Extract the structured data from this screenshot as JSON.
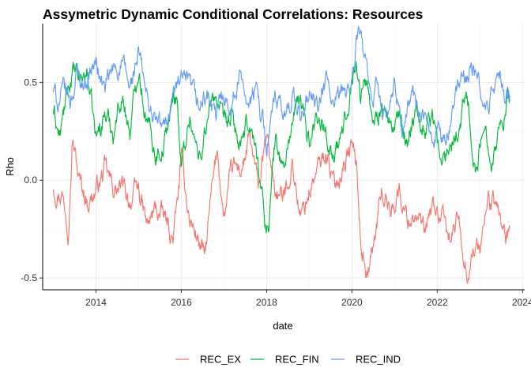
{
  "chart_data": {
    "type": "line",
    "title": "Assymetric Dynamic Conditional Correlations: Resources",
    "xlabel": "date",
    "ylabel": "Rho",
    "xlim": [
      2012.75,
      2024.05
    ],
    "ylim": [
      -0.56,
      0.8
    ],
    "x_ticks": [
      2014,
      2016,
      2018,
      2020,
      2022,
      2024
    ],
    "x_tick_labels": [
      "2014",
      "2016",
      "2018",
      "2020",
      "2022",
      "2024"
    ],
    "y_ticks": [
      -0.5,
      0.0,
      0.5
    ],
    "y_tick_labels": [
      "-0.5",
      "0.0",
      "0.5"
    ],
    "grid": true,
    "legend_position": "bottom",
    "series": [
      {
        "name": "REC_EX",
        "color": "#F8766D",
        "x": [
          2013.0,
          2013.2,
          2013.35,
          2013.45,
          2013.6,
          2013.8,
          2014.0,
          2014.2,
          2014.4,
          2014.6,
          2014.8,
          2015.0,
          2015.2,
          2015.4,
          2015.6,
          2015.8,
          2015.9,
          2016.0,
          2016.2,
          2016.4,
          2016.55,
          2016.7,
          2016.85,
          2017.0,
          2017.2,
          2017.4,
          2017.6,
          2017.8,
          2018.0,
          2018.2,
          2018.4,
          2018.6,
          2018.8,
          2019.0,
          2019.2,
          2019.4,
          2019.6,
          2019.8,
          2020.0,
          2020.1,
          2020.2,
          2020.35,
          2020.5,
          2020.7,
          2020.9,
          2021.1,
          2021.3,
          2021.5,
          2021.7,
          2021.9,
          2022.1,
          2022.3,
          2022.5,
          2022.7,
          2022.85,
          2023.0,
          2023.2,
          2023.4,
          2023.5,
          2023.6,
          2023.7
        ],
        "values": [
          -0.03,
          -0.05,
          -0.2,
          0.24,
          0.0,
          -0.1,
          -0.05,
          0.05,
          -0.05,
          -0.05,
          -0.1,
          -0.05,
          -0.25,
          -0.15,
          -0.2,
          -0.3,
          -0.15,
          0.1,
          -0.2,
          -0.3,
          -0.4,
          -0.1,
          0.15,
          -0.2,
          0.05,
          0.05,
          0.2,
          -0.05,
          0.2,
          -0.05,
          -0.1,
          0.1,
          -0.2,
          -0.05,
          0.05,
          0.15,
          -0.05,
          0.1,
          0.18,
          0.1,
          -0.3,
          -0.45,
          -0.35,
          -0.05,
          -0.15,
          -0.05,
          -0.2,
          -0.15,
          -0.3,
          -0.15,
          -0.2,
          -0.3,
          -0.2,
          -0.45,
          -0.35,
          -0.35,
          -0.1,
          -0.15,
          -0.2,
          -0.3,
          -0.28
        ]
      },
      {
        "name": "REC_FIN",
        "color": "#00BA38",
        "x": [
          2013.0,
          2013.15,
          2013.3,
          2013.45,
          2013.6,
          2013.8,
          2014.0,
          2014.2,
          2014.4,
          2014.6,
          2014.8,
          2015.0,
          2015.2,
          2015.4,
          2015.6,
          2015.8,
          2015.9,
          2016.0,
          2016.2,
          2016.4,
          2016.6,
          2016.8,
          2017.0,
          2017.2,
          2017.4,
          2017.6,
          2017.8,
          2017.95,
          2018.05,
          2018.2,
          2018.4,
          2018.6,
          2018.8,
          2019.0,
          2019.2,
          2019.4,
          2019.6,
          2019.8,
          2020.0,
          2020.1,
          2020.2,
          2020.35,
          2020.5,
          2020.7,
          2020.9,
          2021.1,
          2021.3,
          2021.5,
          2021.7,
          2021.9,
          2022.1,
          2022.3,
          2022.5,
          2022.7,
          2022.9,
          2023.1,
          2023.3,
          2023.5,
          2023.7
        ],
        "values": [
          0.35,
          0.22,
          0.4,
          0.55,
          0.5,
          0.55,
          0.2,
          0.35,
          0.25,
          0.45,
          0.25,
          0.6,
          0.3,
          0.15,
          0.2,
          0.4,
          0.45,
          0.05,
          0.35,
          0.1,
          0.3,
          0.45,
          0.25,
          0.3,
          0.15,
          0.3,
          0.1,
          -0.2,
          -0.22,
          0.2,
          0.05,
          0.3,
          0.4,
          0.2,
          0.35,
          0.25,
          0.1,
          0.25,
          0.55,
          0.6,
          0.45,
          0.5,
          0.3,
          0.4,
          0.25,
          0.3,
          0.2,
          0.4,
          0.25,
          0.35,
          0.05,
          0.2,
          0.3,
          0.45,
          0.05,
          0.25,
          0.15,
          0.3,
          0.45
        ]
      },
      {
        "name": "REC_IND",
        "color": "#619CFF",
        "x": [
          2013.0,
          2013.1,
          2013.25,
          2013.4,
          2013.55,
          2013.7,
          2013.85,
          2014.0,
          2014.2,
          2014.4,
          2014.6,
          2014.8,
          2015.0,
          2015.2,
          2015.4,
          2015.6,
          2015.8,
          2016.0,
          2016.2,
          2016.4,
          2016.6,
          2016.8,
          2017.0,
          2017.2,
          2017.4,
          2017.6,
          2017.8,
          2018.0,
          2018.2,
          2018.4,
          2018.6,
          2018.8,
          2019.0,
          2019.2,
          2019.4,
          2019.6,
          2019.8,
          2020.0,
          2020.15,
          2020.3,
          2020.45,
          2020.6,
          2020.8,
          2021.0,
          2021.2,
          2021.4,
          2021.6,
          2021.8,
          2022.0,
          2022.2,
          2022.4,
          2022.6,
          2022.8,
          2023.0,
          2023.2,
          2023.4,
          2023.6,
          2023.7
        ],
        "values": [
          0.46,
          0.4,
          0.45,
          0.4,
          0.55,
          0.5,
          0.55,
          0.6,
          0.45,
          0.55,
          0.6,
          0.45,
          0.65,
          0.4,
          0.3,
          0.25,
          0.45,
          0.5,
          0.45,
          0.35,
          0.45,
          0.3,
          0.45,
          0.4,
          0.55,
          0.4,
          0.45,
          0.2,
          0.4,
          0.3,
          0.45,
          0.3,
          0.45,
          0.35,
          0.5,
          0.35,
          0.45,
          0.5,
          0.77,
          0.6,
          0.35,
          0.5,
          0.3,
          0.45,
          0.25,
          0.45,
          0.35,
          0.2,
          0.3,
          0.15,
          0.45,
          0.5,
          0.6,
          0.45,
          0.35,
          0.55,
          0.4,
          0.45
        ]
      }
    ]
  }
}
